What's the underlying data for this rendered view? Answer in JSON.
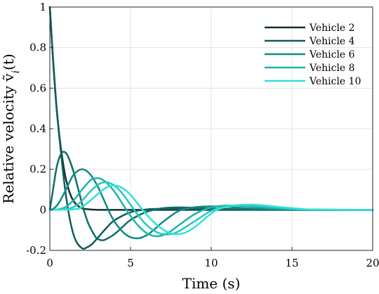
{
  "chart_data": {
    "type": "line",
    "xlabel": "Time (s)",
    "ylabel": "Relative velocity ṽ",
    "ylabel_sub": "i",
    "ylabel_suffix": "(t)",
    "xlim": [
      0,
      20
    ],
    "ylim": [
      -0.2,
      1
    ],
    "xticks": [
      0,
      5,
      10,
      15,
      20
    ],
    "xtick_labels": [
      "0",
      "5",
      "10",
      "15",
      "20"
    ],
    "yticks": [
      -0.2,
      0,
      0.2,
      0.4,
      0.6,
      0.8,
      1
    ],
    "ytick_labels": [
      "-0.2",
      "0",
      "0.2",
      "0.4",
      "0.6",
      "0.8",
      "1"
    ],
    "grid": true,
    "legend_position": "top-right",
    "series": [
      {
        "name": "Vehicle 2",
        "color": "#0d3330",
        "x": [
          0,
          0.2,
          0.4,
          0.6,
          0.8,
          1.0,
          1.3,
          1.6,
          2.0,
          2.5,
          3,
          4,
          5,
          6,
          20
        ],
        "y": [
          1.0,
          0.74,
          0.52,
          0.36,
          0.24,
          0.15,
          0.07,
          0.03,
          0.008,
          0.002,
          0,
          0,
          0,
          0,
          0
        ]
      },
      {
        "name": "Vehicle 4",
        "color": "#0d5e5a",
        "x": [
          0,
          0.2,
          0.4,
          0.6,
          0.8,
          1.0,
          1.3,
          1.6,
          2.0,
          2.3,
          2.6,
          3.0,
          3.5,
          4.0,
          5.0,
          6.0,
          7.0,
          8.0,
          9.0,
          10.0,
          11.0,
          12.0,
          13.0,
          14.0,
          20
        ],
        "y": [
          1.0,
          0.74,
          0.52,
          0.35,
          0.2,
          0.07,
          -0.07,
          -0.15,
          -0.19,
          -0.185,
          -0.17,
          -0.135,
          -0.09,
          -0.052,
          -0.012,
          0.002,
          0.005,
          0.004,
          0.003,
          0.002,
          0.001,
          0.001,
          0,
          0,
          0
        ]
      },
      {
        "name": "Vehicle 4",
        "color": "#0d6e68",
        "x": [
          0,
          0.2,
          0.4,
          0.6,
          0.8,
          1.0,
          1.2,
          1.5,
          1.8,
          2.1,
          2.4,
          2.8,
          3.0,
          3.3,
          3.6,
          4.0,
          4.5,
          5.0,
          6.0,
          7.0,
          8.0,
          9.0,
          10.0,
          11.0,
          12.0,
          13.0,
          14.0,
          20
        ],
        "y": [
          0,
          0.1,
          0.2,
          0.26,
          0.285,
          0.28,
          0.25,
          0.18,
          0.09,
          0.0,
          -0.07,
          -0.13,
          -0.145,
          -0.15,
          -0.14,
          -0.12,
          -0.085,
          -0.05,
          -0.01,
          0.008,
          0.012,
          0.01,
          0.007,
          0.004,
          0.002,
          0.001,
          0,
          0
        ]
      },
      {
        "name": "Vehicle 6",
        "color": "#138a83",
        "x": [
          0,
          0.3,
          0.6,
          1.0,
          1.4,
          1.7,
          2.0,
          2.3,
          2.6,
          3.0,
          3.4,
          3.8,
          4.2,
          4.6,
          5.0,
          5.5,
          6.0,
          6.5,
          7.0,
          8.0,
          9.0,
          10.0,
          11.0,
          12.0,
          13.0,
          14.0,
          15.0,
          20
        ],
        "y": [
          0,
          0.01,
          0.04,
          0.1,
          0.165,
          0.19,
          0.2,
          0.19,
          0.165,
          0.11,
          0.04,
          -0.03,
          -0.08,
          -0.115,
          -0.135,
          -0.14,
          -0.125,
          -0.095,
          -0.06,
          -0.005,
          0.013,
          0.017,
          0.014,
          0.009,
          0.005,
          0.002,
          0,
          0
        ]
      },
      {
        "name": "Vehicle 8",
        "color": "#1fb3aa",
        "x": [
          0,
          0.5,
          1.0,
          1.5,
          2.0,
          2.5,
          2.8,
          3.1,
          3.5,
          4.0,
          4.5,
          5.0,
          5.5,
          6.0,
          6.5,
          7.0,
          7.5,
          8.0,
          9.0,
          10.0,
          11.0,
          12.0,
          13.0,
          14.0,
          15.0,
          16.0,
          20
        ],
        "y": [
          0,
          0.002,
          0.015,
          0.05,
          0.1,
          0.145,
          0.155,
          0.155,
          0.135,
          0.09,
          0.03,
          -0.03,
          -0.08,
          -0.115,
          -0.13,
          -0.125,
          -0.105,
          -0.075,
          -0.02,
          0.012,
          0.021,
          0.019,
          0.013,
          0.007,
          0.003,
          0.001,
          0
        ]
      },
      {
        "name": "Vehicle 8",
        "color": "#26c9c0",
        "x": [
          0,
          1.0,
          1.5,
          2.0,
          2.5,
          3.0,
          3.3,
          3.6,
          4.0,
          4.5,
          5.0,
          5.5,
          6.0,
          6.5,
          7.0,
          7.5,
          8.0,
          8.5,
          9.0,
          10.0,
          11.0,
          12.0,
          13.0,
          14.0,
          15.0,
          16.0,
          20
        ],
        "y": [
          0,
          0.004,
          0.015,
          0.045,
          0.09,
          0.125,
          0.135,
          0.135,
          0.12,
          0.08,
          0.025,
          -0.03,
          -0.075,
          -0.105,
          -0.12,
          -0.12,
          -0.105,
          -0.08,
          -0.055,
          -0.005,
          0.018,
          0.024,
          0.02,
          0.013,
          0.006,
          0.002,
          0
        ]
      },
      {
        "name": "Vehicle 10",
        "color": "#33e0d6",
        "x": [
          0,
          1.5,
          2.0,
          2.5,
          3.0,
          3.5,
          3.9,
          4.3,
          4.8,
          5.3,
          5.8,
          6.3,
          6.8,
          7.3,
          7.8,
          8.3,
          8.8,
          9.3,
          9.8,
          10.5,
          11.5,
          12.5,
          13.5,
          14.5,
          15.5,
          16.5,
          20
        ],
        "y": [
          0,
          0.003,
          0.015,
          0.045,
          0.08,
          0.11,
          0.12,
          0.115,
          0.09,
          0.045,
          -0.005,
          -0.05,
          -0.085,
          -0.11,
          -0.12,
          -0.115,
          -0.095,
          -0.065,
          -0.03,
          0.005,
          0.022,
          0.026,
          0.02,
          0.012,
          0.005,
          0.001,
          0
        ]
      }
    ],
    "legend": [
      {
        "label": "Vehicle 2",
        "color": "#0d3330"
      },
      {
        "label": "Vehicle 4",
        "color": "#0d5e5a"
      },
      {
        "label": "Vehicle 6",
        "color": "#138a83"
      },
      {
        "label": "Vehicle 8",
        "color": "#1fb3aa"
      },
      {
        "label": "Vehicle 10",
        "color": "#33e0d6"
      }
    ]
  }
}
